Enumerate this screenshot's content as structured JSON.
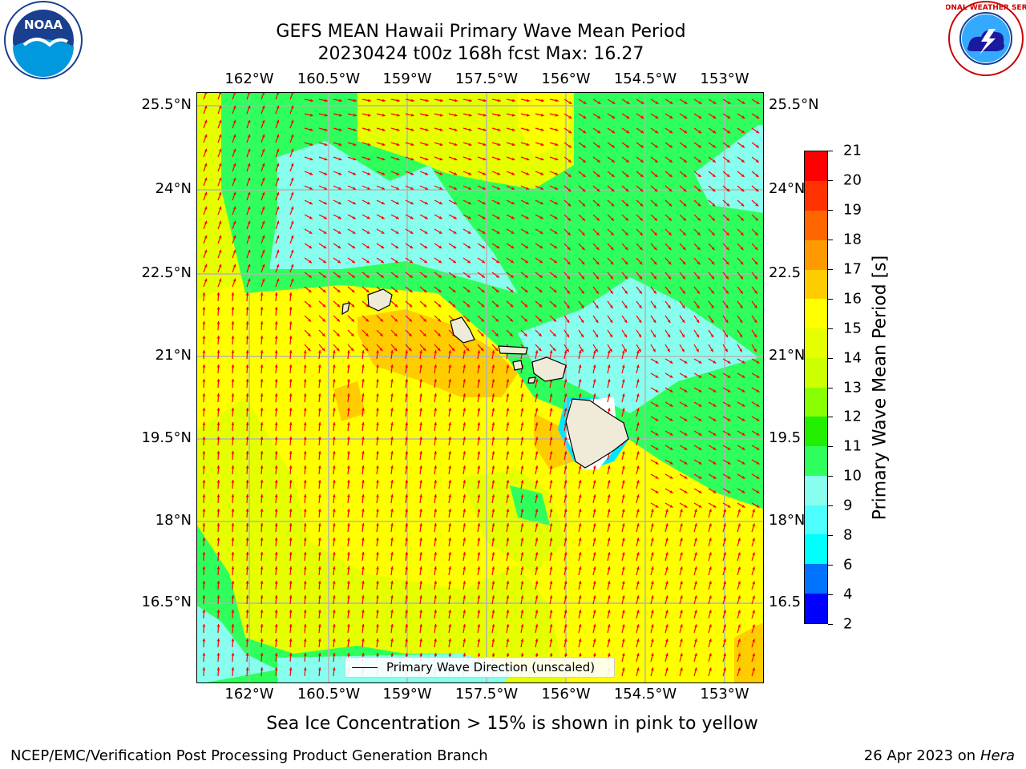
{
  "title": {
    "line1": "GEFS MEAN Hawaii Primary Wave Mean Period",
    "line2": "20230424 t00z 168h fcst   Max: 16.27"
  },
  "axes": {
    "lon_ticks": [
      "162°W",
      "160.5°W",
      "159°W",
      "157.5°W",
      "156°W",
      "154.5°W",
      "153°W"
    ],
    "lat_ticks_left": [
      "25.5°N",
      "24°N",
      "22.5°N",
      "21°N",
      "19.5°N",
      "18°N",
      "16.5°N"
    ],
    "lat_ticks_right": [
      "25.5°N",
      "24°N",
      "22.5",
      "21°N",
      "19.5",
      "18°N",
      "16.5"
    ]
  },
  "legend": {
    "label": "Primary Wave Direction (unscaled)"
  },
  "colorbar": {
    "label": "Primary Wave Mean Period [s]",
    "ticks": [
      "2",
      "4",
      "6",
      "8",
      "9",
      "10",
      "11",
      "12",
      "13",
      "14",
      "15",
      "16",
      "17",
      "18",
      "19",
      "20",
      "21"
    ],
    "colors": [
      "#0000ff",
      "#0073ff",
      "#00ffff",
      "#4dffff",
      "#88ffee",
      "#2eff5c",
      "#22ee00",
      "#88ff00",
      "#ccff00",
      "#e6ff00",
      "#ffff00",
      "#ffcc00",
      "#ff9900",
      "#ff6600",
      "#ff3300",
      "#ff0000"
    ]
  },
  "note": "Sea Ice Concentration > 15% is shown in pink to yellow",
  "footer": {
    "left": "NCEP/EMC/Verification Post Processing Product Generation Branch",
    "right_date": "26 Apr 2023 on",
    "right_host": "Hera"
  },
  "logos": {
    "noaa_text": "NOAA",
    "nws_text": "NATIONAL WEATHER SERVICE"
  },
  "colors": {
    "yellow": "#ffff00",
    "lime": "#e6ff00",
    "orange": "#ffcc00",
    "green": "#2eff5c",
    "cyan": "#88ffee",
    "arrow": "#ff0000",
    "land": "#f0ead8"
  }
}
